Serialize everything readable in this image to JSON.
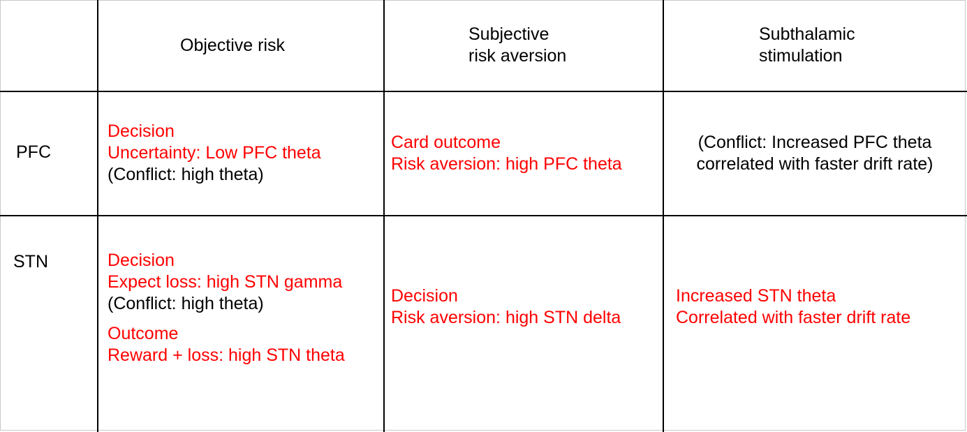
{
  "columns": {
    "objective": "Objective risk",
    "subjective": [
      "Subjective",
      "risk aversion"
    ],
    "stimulation": [
      "Subthalamic",
      "stimulation"
    ]
  },
  "rows": {
    "pfc": {
      "label": "PFC",
      "objective": [
        "Decision",
        "Uncertainty: Low PFC theta",
        "(Conflict: high theta)"
      ],
      "subjective": [
        "Card outcome",
        "Risk aversion: high PFC theta"
      ],
      "stimulation": [
        "(Conflict: Increased PFC theta",
        "correlated with faster drift rate)"
      ]
    },
    "stn": {
      "label": "STN",
      "objective": [
        "Decision",
        "Expect loss: high STN gamma",
        "(Conflict: high theta)",
        "Outcome",
        "Reward + loss: high STN theta"
      ],
      "subjective": [
        "Decision",
        "Risk aversion: high STN delta"
      ],
      "stimulation": [
        "Increased STN theta",
        "Correlated with faster drift rate"
      ]
    }
  },
  "colors": {
    "highlight": "#ff0000",
    "text": "#000000",
    "grid": "#000000"
  }
}
